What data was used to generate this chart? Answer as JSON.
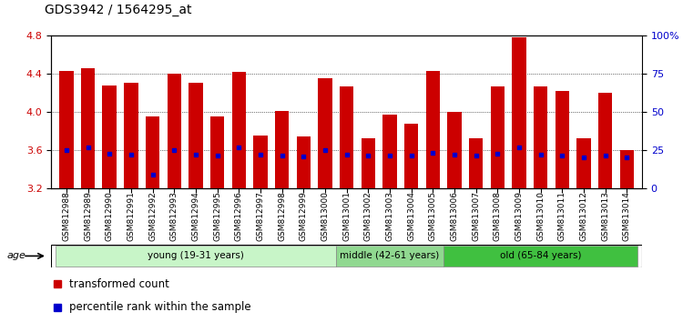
{
  "title": "GDS3942 / 1564295_at",
  "samples": [
    "GSM812988",
    "GSM812989",
    "GSM812990",
    "GSM812991",
    "GSM812992",
    "GSM812993",
    "GSM812994",
    "GSM812995",
    "GSM812996",
    "GSM812997",
    "GSM812998",
    "GSM812999",
    "GSM813000",
    "GSM813001",
    "GSM813002",
    "GSM813003",
    "GSM813004",
    "GSM813005",
    "GSM813006",
    "GSM813007",
    "GSM813008",
    "GSM813009",
    "GSM813010",
    "GSM813011",
    "GSM813012",
    "GSM813013",
    "GSM813014"
  ],
  "bar_heights": [
    4.43,
    4.46,
    4.28,
    4.3,
    3.95,
    4.4,
    4.3,
    3.95,
    4.42,
    3.75,
    4.01,
    3.74,
    4.35,
    4.27,
    3.72,
    3.97,
    3.88,
    4.43,
    4.0,
    3.72,
    4.27,
    4.78,
    4.27,
    4.22,
    3.72,
    4.2,
    3.6
  ],
  "blue_dot_values": [
    3.6,
    3.63,
    3.56,
    3.55,
    3.34,
    3.6,
    3.55,
    3.54,
    3.63,
    3.55,
    3.54,
    3.53,
    3.6,
    3.55,
    3.54,
    3.54,
    3.54,
    3.57,
    3.55,
    3.54,
    3.56,
    3.63,
    3.55,
    3.54,
    3.52,
    3.54,
    3.52
  ],
  "bar_color": "#cc0000",
  "blue_dot_color": "#0000cc",
  "ylim_left": [
    3.2,
    4.8
  ],
  "ylim_right": [
    0,
    100
  ],
  "yticks_left": [
    3.2,
    3.6,
    4.0,
    4.4,
    4.8
  ],
  "yticks_right": [
    0,
    25,
    50,
    75,
    100
  ],
  "ytick_labels_right": [
    "0",
    "25",
    "50",
    "75",
    "100%"
  ],
  "groups": [
    {
      "label": "young (19-31 years)",
      "start": 0,
      "end": 13,
      "color": "#c8f5c8"
    },
    {
      "label": "middle (42-61 years)",
      "start": 13,
      "end": 18,
      "color": "#90d890"
    },
    {
      "label": "old (65-84 years)",
      "start": 18,
      "end": 27,
      "color": "#40c040"
    }
  ],
  "legend_items": [
    {
      "label": "transformed count",
      "color": "#cc0000"
    },
    {
      "label": "percentile rank within the sample",
      "color": "#0000cc"
    }
  ],
  "background_color": "#ffffff",
  "bar_width": 0.65
}
